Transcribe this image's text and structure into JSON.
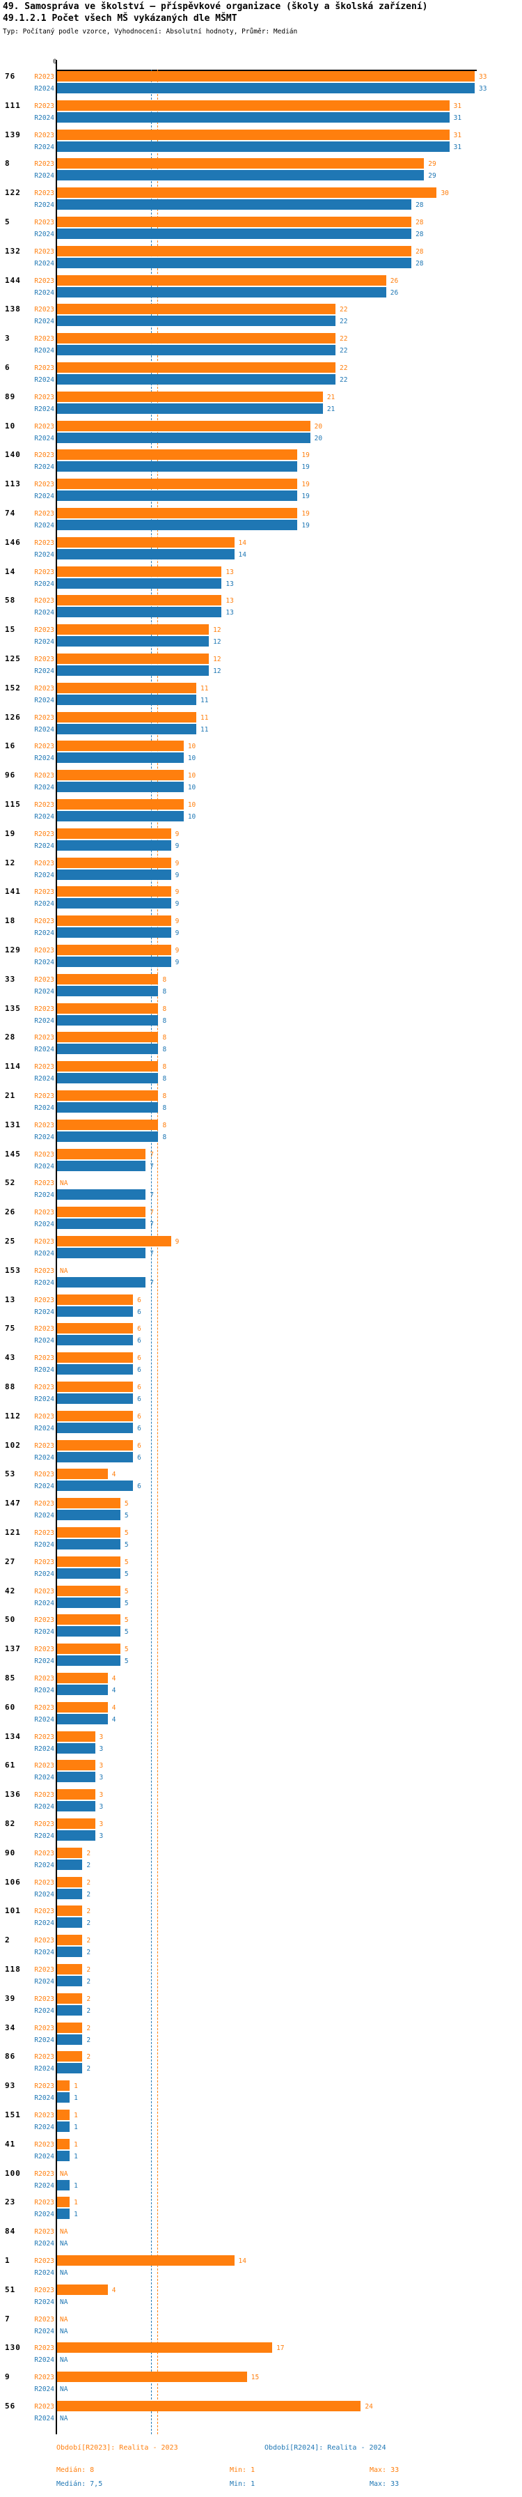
{
  "header": {
    "title1": "49. Samospráva ve školství – příspěvkové organizace (školy a školská zařízení)",
    "title2": "49.1.2.1 Počet všech MŠ vykázaných dle MŠMT",
    "subtitle": "Typ: Počítaný podle vzorce, Vyhodnocení: Absolutní hodnoty, Průměr: Medián"
  },
  "legend": {
    "r2023": "Období[R2023]: Realita - 2023",
    "r2024": "Období[R2024]: Realita - 2024"
  },
  "stats": {
    "r2023": {
      "median": "Medián: 8",
      "min": "Min: 1",
      "max": "Max: 33"
    },
    "r2024": {
      "median": "Medián: 7,5",
      "min": "Min: 1",
      "max": "Max: 33"
    }
  },
  "chart_data": {
    "type": "bar",
    "orientation": "horizontal",
    "series_labels": {
      "r2023": "R2023",
      "r2024": "R2024"
    },
    "colors": {
      "r2023": "#ff7f0e",
      "r2024": "#1f77b4"
    },
    "na_label": "NA",
    "zero_tick": "0",
    "xlim": [
      0,
      33
    ],
    "medians": {
      "r2023": 8,
      "r2024": 7.5
    },
    "legend_position": "bottom",
    "groups": [
      {
        "code": "76",
        "r2023": 33,
        "r2024": 33
      },
      {
        "code": "111",
        "r2023": 31,
        "r2024": 31
      },
      {
        "code": "139",
        "r2023": 31,
        "r2024": 31
      },
      {
        "code": "8",
        "r2023": 29,
        "r2024": 29
      },
      {
        "code": "122",
        "r2023": 30,
        "r2024": 28
      },
      {
        "code": "5",
        "r2023": 28,
        "r2024": 28
      },
      {
        "code": "132",
        "r2023": 28,
        "r2024": 28
      },
      {
        "code": "144",
        "r2023": 26,
        "r2024": 26
      },
      {
        "code": "138",
        "r2023": 22,
        "r2024": 22
      },
      {
        "code": "3",
        "r2023": 22,
        "r2024": 22
      },
      {
        "code": "6",
        "r2023": 22,
        "r2024": 22
      },
      {
        "code": "89",
        "r2023": 21,
        "r2024": 21
      },
      {
        "code": "10",
        "r2023": 20,
        "r2024": 20
      },
      {
        "code": "140",
        "r2023": 19,
        "r2024": 19
      },
      {
        "code": "113",
        "r2023": 19,
        "r2024": 19
      },
      {
        "code": "74",
        "r2023": 19,
        "r2024": 19
      },
      {
        "code": "146",
        "r2023": 14,
        "r2024": 14
      },
      {
        "code": "14",
        "r2023": 13,
        "r2024": 13
      },
      {
        "code": "58",
        "r2023": 13,
        "r2024": 13
      },
      {
        "code": "15",
        "r2023": 12,
        "r2024": 12
      },
      {
        "code": "125",
        "r2023": 12,
        "r2024": 12
      },
      {
        "code": "152",
        "r2023": 11,
        "r2024": 11
      },
      {
        "code": "126",
        "r2023": 11,
        "r2024": 11
      },
      {
        "code": "16",
        "r2023": 10,
        "r2024": 10
      },
      {
        "code": "96",
        "r2023": 10,
        "r2024": 10
      },
      {
        "code": "115",
        "r2023": 10,
        "r2024": 10
      },
      {
        "code": "19",
        "r2023": 9,
        "r2024": 9
      },
      {
        "code": "12",
        "r2023": 9,
        "r2024": 9
      },
      {
        "code": "141",
        "r2023": 9,
        "r2024": 9
      },
      {
        "code": "18",
        "r2023": 9,
        "r2024": 9
      },
      {
        "code": "129",
        "r2023": 9,
        "r2024": 9
      },
      {
        "code": "33",
        "r2023": 8,
        "r2024": 8
      },
      {
        "code": "135",
        "r2023": 8,
        "r2024": 8
      },
      {
        "code": "28",
        "r2023": 8,
        "r2024": 8
      },
      {
        "code": "114",
        "r2023": 8,
        "r2024": 8
      },
      {
        "code": "21",
        "r2023": 8,
        "r2024": 8
      },
      {
        "code": "131",
        "r2023": 8,
        "r2024": 8
      },
      {
        "code": "145",
        "r2023": 7,
        "r2024": 7
      },
      {
        "code": "52",
        "r2023": null,
        "r2024": 7
      },
      {
        "code": "26",
        "r2023": 7,
        "r2024": 7
      },
      {
        "code": "25",
        "r2023": 9,
        "r2024": 7
      },
      {
        "code": "153",
        "r2023": null,
        "r2024": 7
      },
      {
        "code": "13",
        "r2023": 6,
        "r2024": 6
      },
      {
        "code": "75",
        "r2023": 6,
        "r2024": 6
      },
      {
        "code": "43",
        "r2023": 6,
        "r2024": 6
      },
      {
        "code": "88",
        "r2023": 6,
        "r2024": 6
      },
      {
        "code": "112",
        "r2023": 6,
        "r2024": 6
      },
      {
        "code": "102",
        "r2023": 6,
        "r2024": 6
      },
      {
        "code": "53",
        "r2023": 4,
        "r2024": 6
      },
      {
        "code": "147",
        "r2023": 5,
        "r2024": 5
      },
      {
        "code": "121",
        "r2023": 5,
        "r2024": 5
      },
      {
        "code": "27",
        "r2023": 5,
        "r2024": 5
      },
      {
        "code": "42",
        "r2023": 5,
        "r2024": 5
      },
      {
        "code": "50",
        "r2023": 5,
        "r2024": 5
      },
      {
        "code": "137",
        "r2023": 5,
        "r2024": 5
      },
      {
        "code": "85",
        "r2023": 4,
        "r2024": 4
      },
      {
        "code": "60",
        "r2023": 4,
        "r2024": 4
      },
      {
        "code": "134",
        "r2023": 3,
        "r2024": 3
      },
      {
        "code": "61",
        "r2023": 3,
        "r2024": 3
      },
      {
        "code": "136",
        "r2023": 3,
        "r2024": 3
      },
      {
        "code": "82",
        "r2023": 3,
        "r2024": 3
      },
      {
        "code": "90",
        "r2023": 2,
        "r2024": 2
      },
      {
        "code": "106",
        "r2023": 2,
        "r2024": 2
      },
      {
        "code": "101",
        "r2023": 2,
        "r2024": 2
      },
      {
        "code": "2",
        "r2023": 2,
        "r2024": 2
      },
      {
        "code": "118",
        "r2023": 2,
        "r2024": 2
      },
      {
        "code": "39",
        "r2023": 2,
        "r2024": 2
      },
      {
        "code": "34",
        "r2023": 2,
        "r2024": 2
      },
      {
        "code": "86",
        "r2023": 2,
        "r2024": 2
      },
      {
        "code": "93",
        "r2023": 1,
        "r2024": 1
      },
      {
        "code": "151",
        "r2023": 1,
        "r2024": 1
      },
      {
        "code": "41",
        "r2023": 1,
        "r2024": 1
      },
      {
        "code": "100",
        "r2023": null,
        "r2024": 1
      },
      {
        "code": "23",
        "r2023": 1,
        "r2024": 1
      },
      {
        "code": "84",
        "r2023": null,
        "r2024": null
      },
      {
        "code": "1",
        "r2023": 14,
        "r2024": null
      },
      {
        "code": "51",
        "r2023": 4,
        "r2024": null
      },
      {
        "code": "7",
        "r2023": null,
        "r2024": null
      },
      {
        "code": "130",
        "r2023": 17,
        "r2024": null
      },
      {
        "code": "9",
        "r2023": 15,
        "r2024": null
      },
      {
        "code": "56",
        "r2023": 24,
        "r2024": null
      }
    ]
  }
}
